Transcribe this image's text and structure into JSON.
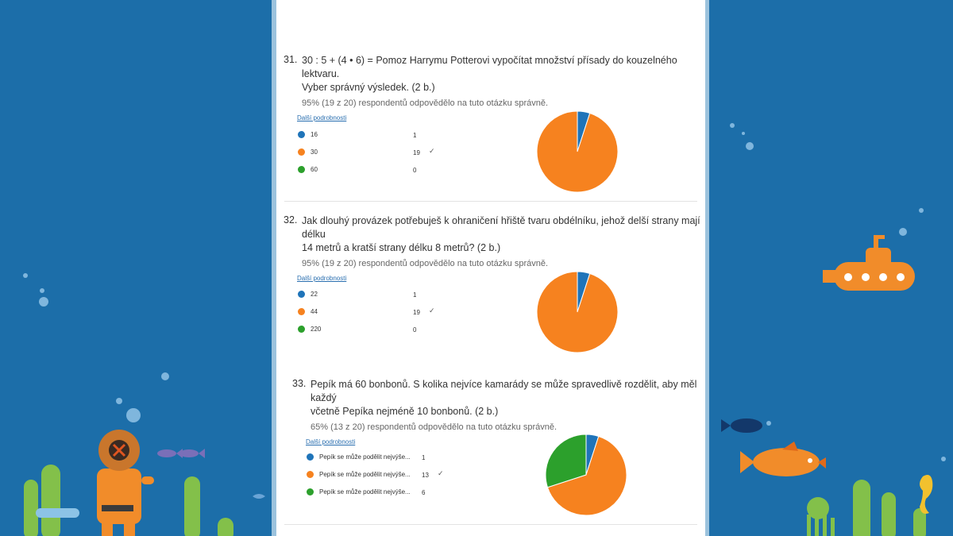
{
  "colors": {
    "blue": "#1f74b9",
    "orange": "#f6821f",
    "green": "#2ca02c",
    "bg": "#1c6ea9"
  },
  "questions": [
    {
      "number": "31.",
      "title_line1": "30 : 5 + (4 • 6) = Pomoz Harrymu Potterovi vypočítat množství přísady do kouzelného lektvaru.",
      "title_line2": "Vyber správný výsledek. (2 b.)",
      "stat": "95% (19 z 20) respondentů odpovědělo na tuto otázku správně.",
      "link": "Další podrobnosti",
      "options": [
        {
          "label": "16",
          "count": "1",
          "correct": false
        },
        {
          "label": "30",
          "count": "19",
          "correct": true
        },
        {
          "label": "60",
          "count": "0",
          "correct": false
        }
      ]
    },
    {
      "number": "32.",
      "title_line1": "Jak dlouhý provázek potřebuješ k ohraničení hřiště tvaru obdélníku, jehož delší strany mají délku",
      "title_line2": "14 metrů a kratší strany délku 8 metrů? (2 b.)",
      "stat": "95% (19 z 20) respondentů odpovědělo na tuto otázku správně.",
      "link": "Další podrobnosti",
      "options": [
        {
          "label": "22",
          "count": "1",
          "correct": false
        },
        {
          "label": "44",
          "count": "19",
          "correct": true
        },
        {
          "label": "220",
          "count": "0",
          "correct": false
        }
      ]
    },
    {
      "number": "33.",
      "title_line1": "Pepík má 60 bonbonů. S kolika nejvíce kamarády se může spravedlivě rozdělit, aby měl každý",
      "title_line2": "včetně Pepíka nejméně 10 bonbonů. (2 b.)",
      "stat": "65% (13 z 20) respondentů odpovědělo na tuto otázku správně.",
      "link": "Další podrobnosti",
      "options": [
        {
          "label": "Pepík se může podělit nejvýše...",
          "count": "1",
          "correct": false
        },
        {
          "label": "Pepík se může podělit nejvýše...",
          "count": "13",
          "correct": true
        },
        {
          "label": "Pepík se může podělit nejvýše...",
          "count": "6",
          "correct": false
        }
      ]
    }
  ],
  "check_glyph": "✓",
  "chart_data": [
    {
      "type": "pie",
      "categories": [
        "16",
        "30",
        "60"
      ],
      "values": [
        1,
        19,
        0
      ],
      "colors": [
        "#1f74b9",
        "#f6821f",
        "#2ca02c"
      ]
    },
    {
      "type": "pie",
      "categories": [
        "22",
        "44",
        "220"
      ],
      "values": [
        1,
        19,
        0
      ],
      "colors": [
        "#1f74b9",
        "#f6821f",
        "#2ca02c"
      ]
    },
    {
      "type": "pie",
      "categories": [
        "Pepík se může podělit nejvýše...",
        "Pepík se může podělit nejvýše...",
        "Pepík se může podělit nejvýše..."
      ],
      "values": [
        1,
        13,
        6
      ],
      "colors": [
        "#1f74b9",
        "#f6821f",
        "#2ca02c"
      ]
    }
  ]
}
